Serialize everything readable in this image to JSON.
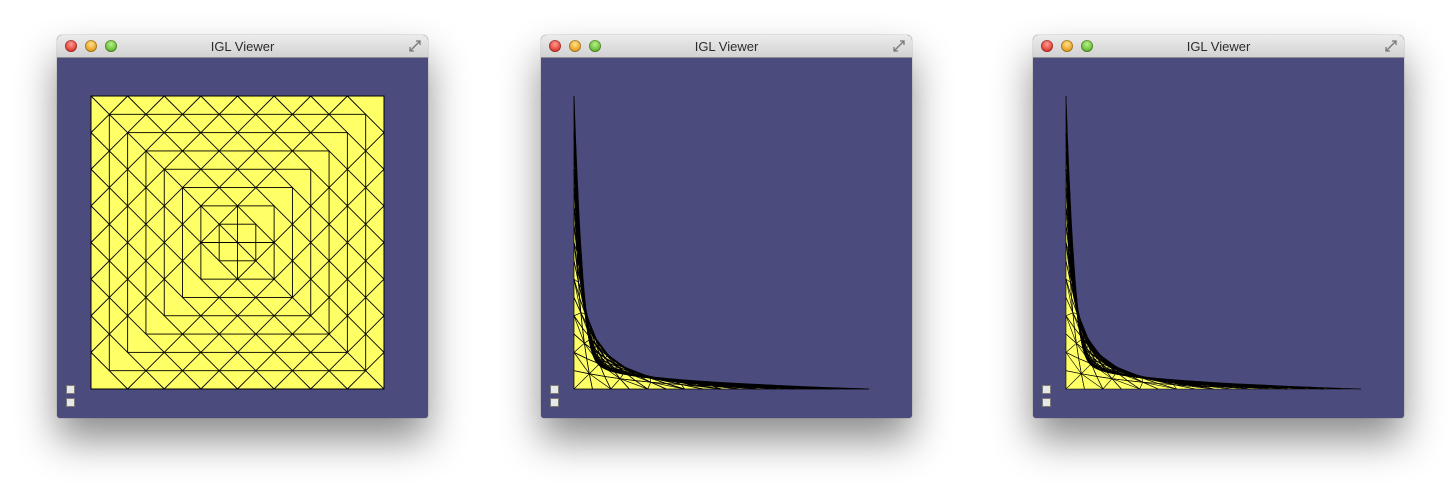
{
  "windows": [
    {
      "title": "IGL Viewer",
      "mesh": "original"
    },
    {
      "title": "IGL Viewer",
      "mesh": "deformed-coarse"
    },
    {
      "title": "IGL Viewer",
      "mesh": "deformed-fine"
    }
  ],
  "colors": {
    "viewport_background": "#4b4b7d",
    "mesh_fill": "#ffff66",
    "mesh_edges": "#000000"
  },
  "icons": {
    "fullscreen": "fullscreen-arrows-icon",
    "mini_buttons": [
      "image-icon",
      "help-icon"
    ]
  }
}
